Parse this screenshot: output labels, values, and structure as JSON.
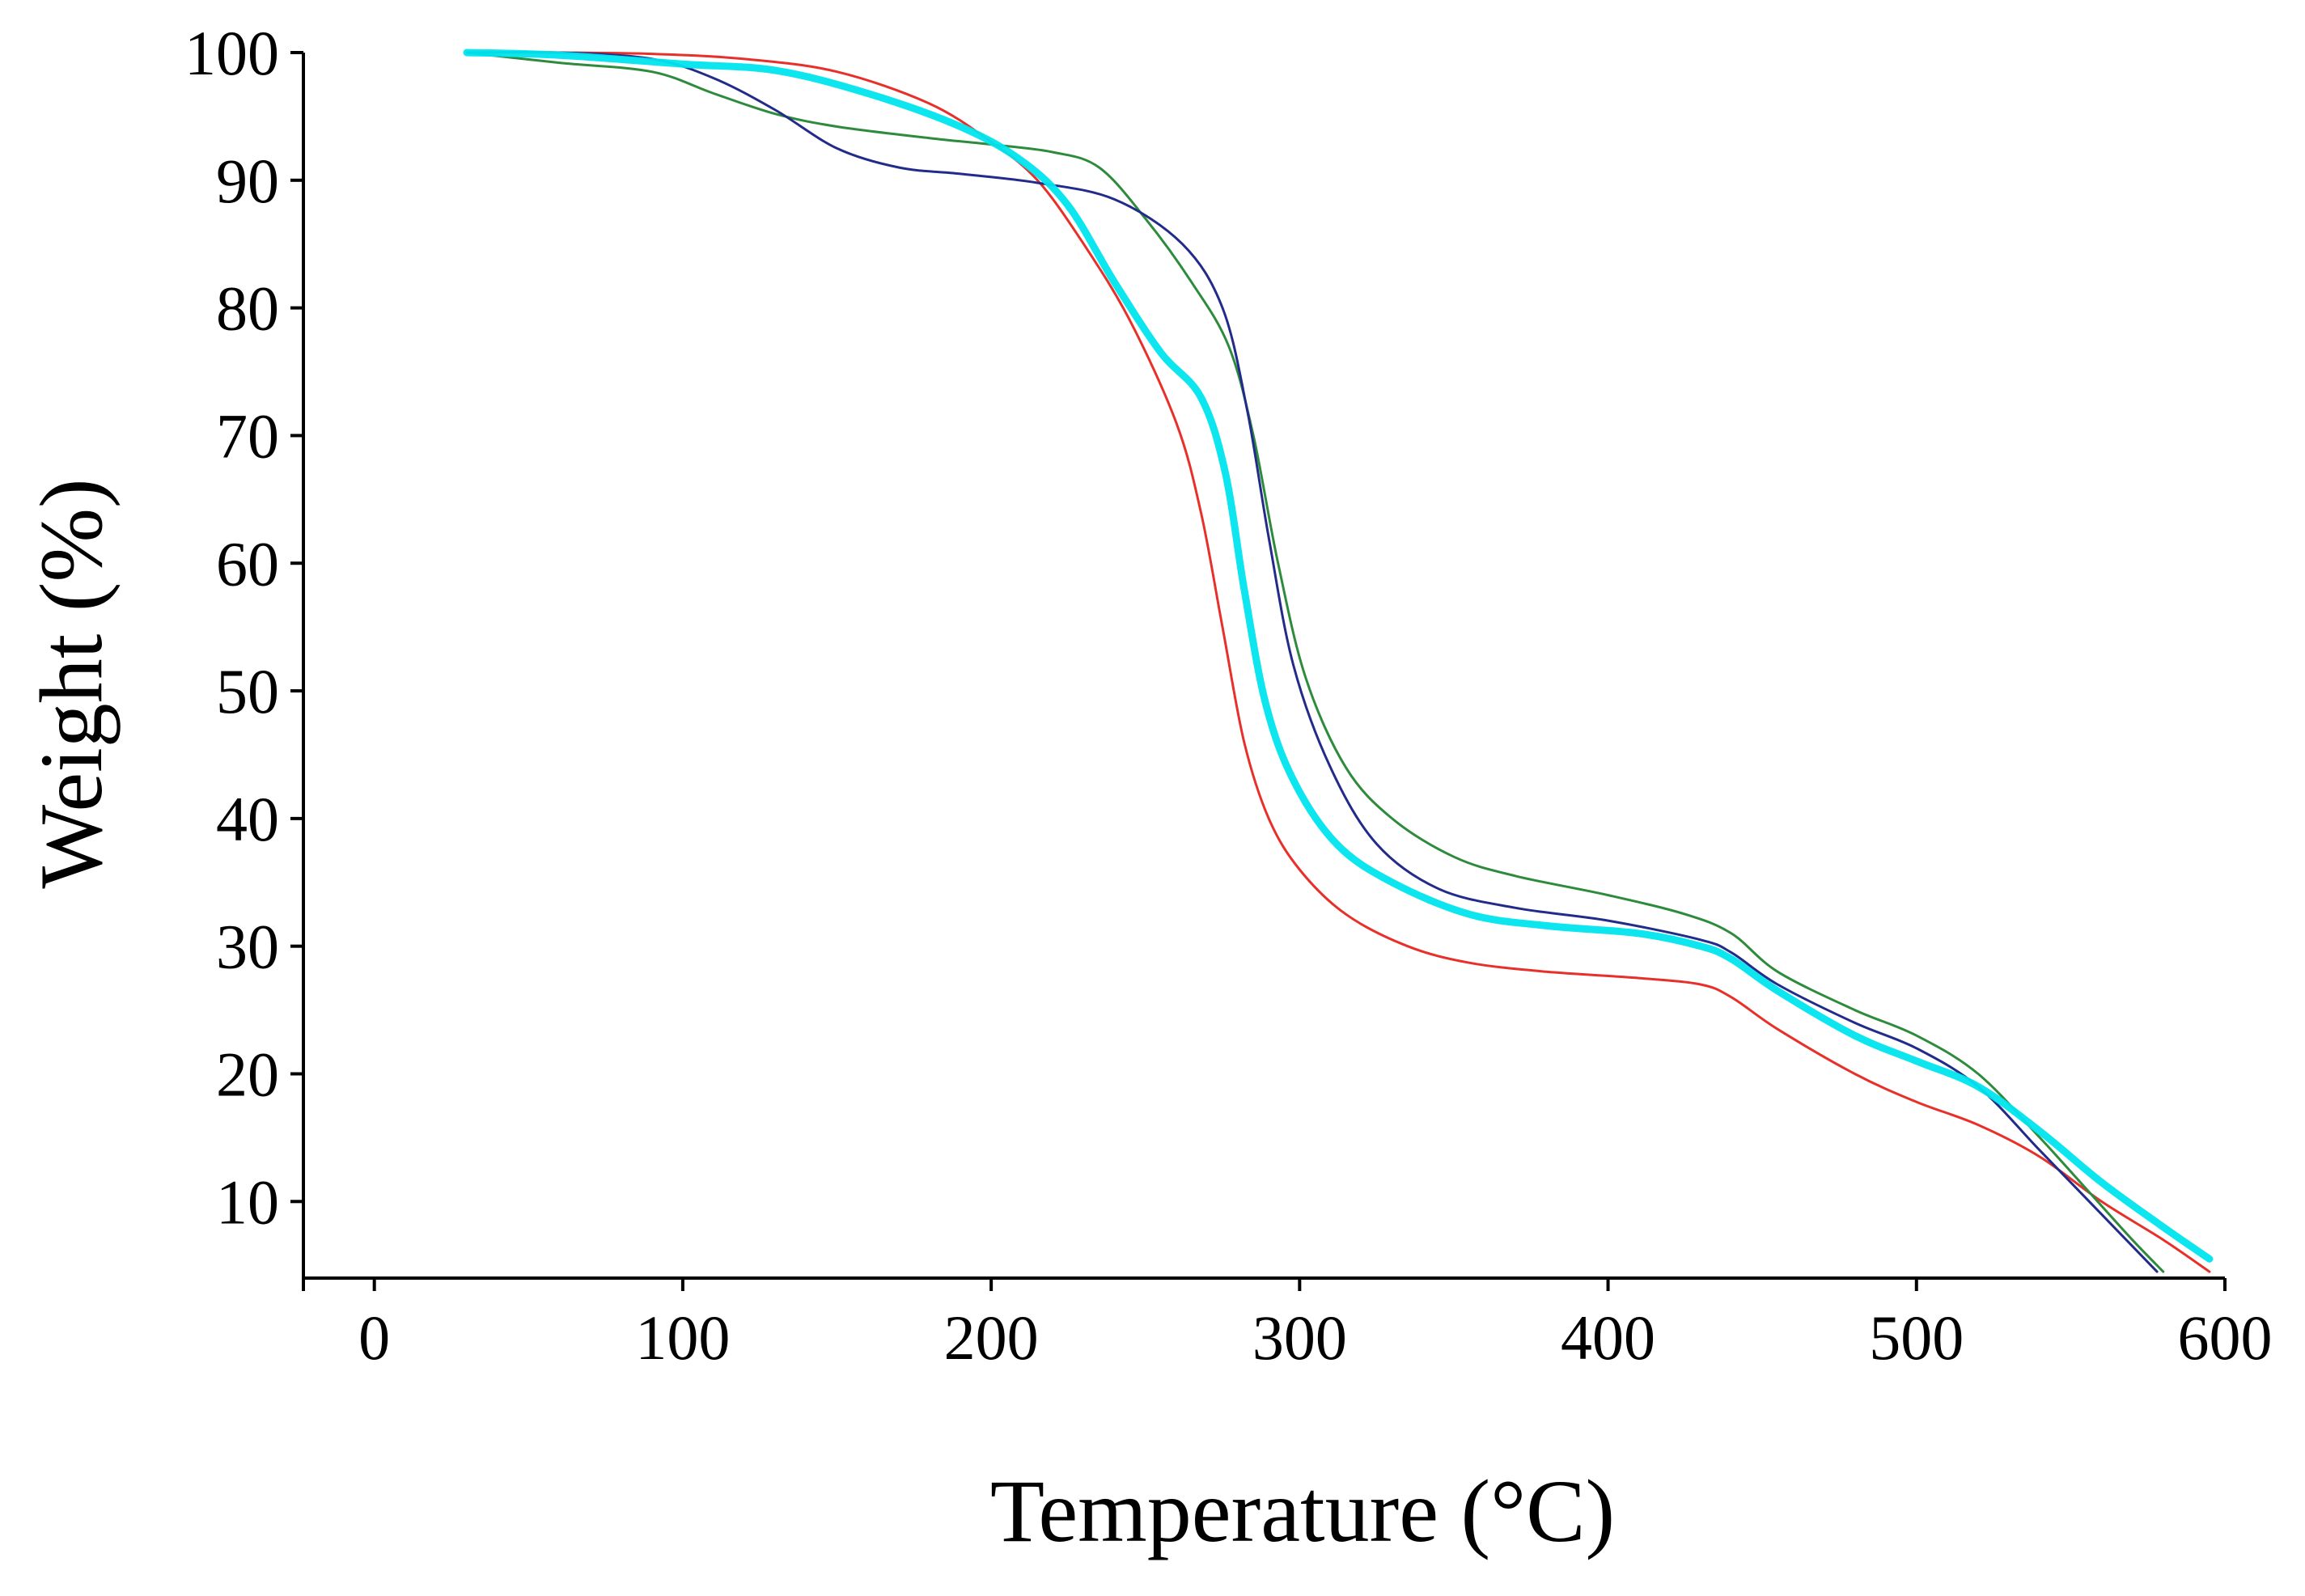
{
  "chart_data": {
    "type": "line",
    "title": "",
    "xlabel": "Temperature  (°C)",
    "ylabel": "Weight  (%)",
    "xlim": [
      -23,
      600
    ],
    "ylim": [
      4,
      100
    ],
    "x_ticks": [
      0,
      100,
      200,
      300,
      400,
      500,
      600
    ],
    "y_ticks": [
      10,
      20,
      30,
      40,
      50,
      60,
      70,
      80,
      90,
      100
    ],
    "grid": false,
    "legend": "none",
    "series": [
      {
        "name": "red",
        "color": "#e8302a",
        "points": [
          [
            30,
            100
          ],
          [
            60,
            100
          ],
          [
            90,
            99.9
          ],
          [
            120,
            99.5
          ],
          [
            150,
            98.5
          ],
          [
            180,
            96
          ],
          [
            200,
            93
          ],
          [
            215,
            90
          ],
          [
            230,
            85
          ],
          [
            245,
            79
          ],
          [
            260,
            71
          ],
          [
            268,
            64
          ],
          [
            275,
            55
          ],
          [
            282,
            46
          ],
          [
            290,
            40
          ],
          [
            300,
            36
          ],
          [
            315,
            32.5
          ],
          [
            335,
            30
          ],
          [
            355,
            28.7
          ],
          [
            380,
            28
          ],
          [
            410,
            27.5
          ],
          [
            430,
            27
          ],
          [
            440,
            26
          ],
          [
            455,
            23.5
          ],
          [
            480,
            20
          ],
          [
            500,
            17.8
          ],
          [
            520,
            16
          ],
          [
            540,
            13.5
          ],
          [
            560,
            10
          ],
          [
            580,
            7
          ],
          [
            595,
            4.5
          ]
        ]
      },
      {
        "name": "navy",
        "color": "#222b8a",
        "points": [
          [
            30,
            100
          ],
          [
            60,
            100
          ],
          [
            90,
            99.5
          ],
          [
            110,
            98
          ],
          [
            130,
            95.5
          ],
          [
            150,
            92.5
          ],
          [
            170,
            91
          ],
          [
            190,
            90.5
          ],
          [
            215,
            89.8
          ],
          [
            240,
            88.5
          ],
          [
            262,
            85
          ],
          [
            275,
            80
          ],
          [
            283,
            72
          ],
          [
            290,
            62
          ],
          [
            298,
            52
          ],
          [
            310,
            44
          ],
          [
            325,
            38
          ],
          [
            345,
            34.5
          ],
          [
            370,
            33
          ],
          [
            400,
            32
          ],
          [
            430,
            30.5
          ],
          [
            440,
            29.5
          ],
          [
            455,
            27
          ],
          [
            480,
            24
          ],
          [
            500,
            22
          ],
          [
            520,
            19
          ],
          [
            540,
            14
          ],
          [
            560,
            9
          ],
          [
            578,
            4.5
          ]
        ]
      },
      {
        "name": "green",
        "color": "#2e8b3c",
        "points": [
          [
            30,
            100
          ],
          [
            60,
            99.2
          ],
          [
            90,
            98.5
          ],
          [
            110,
            96.8
          ],
          [
            130,
            95.2
          ],
          [
            150,
            94.2
          ],
          [
            180,
            93.3
          ],
          [
            200,
            92.8
          ],
          [
            220,
            92.2
          ],
          [
            235,
            91
          ],
          [
            250,
            87
          ],
          [
            265,
            82
          ],
          [
            277,
            77
          ],
          [
            285,
            70
          ],
          [
            293,
            60
          ],
          [
            302,
            51
          ],
          [
            315,
            44
          ],
          [
            330,
            40
          ],
          [
            350,
            37
          ],
          [
            370,
            35.5
          ],
          [
            400,
            34
          ],
          [
            425,
            32.5
          ],
          [
            440,
            31
          ],
          [
            455,
            28
          ],
          [
            480,
            25
          ],
          [
            500,
            23
          ],
          [
            520,
            20
          ],
          [
            540,
            15
          ],
          [
            555,
            11
          ],
          [
            570,
            7
          ],
          [
            580,
            4.5
          ]
        ]
      },
      {
        "name": "cyan",
        "color": "#00e5ee",
        "points": [
          [
            30,
            100
          ],
          [
            60,
            99.8
          ],
          [
            100,
            99.1
          ],
          [
            130,
            98.6
          ],
          [
            160,
            96.8
          ],
          [
            190,
            94.2
          ],
          [
            210,
            91.5
          ],
          [
            225,
            88
          ],
          [
            240,
            82
          ],
          [
            255,
            76.5
          ],
          [
            268,
            73
          ],
          [
            276,
            67
          ],
          [
            282,
            58
          ],
          [
            289,
            49
          ],
          [
            298,
            43
          ],
          [
            312,
            38
          ],
          [
            330,
            35
          ],
          [
            355,
            32.5
          ],
          [
            380,
            31.6
          ],
          [
            410,
            31
          ],
          [
            430,
            30
          ],
          [
            440,
            29
          ],
          [
            455,
            26.5
          ],
          [
            480,
            23
          ],
          [
            500,
            21
          ],
          [
            520,
            19
          ],
          [
            540,
            15.5
          ],
          [
            560,
            11.5
          ],
          [
            580,
            8
          ],
          [
            595,
            5.5
          ]
        ]
      }
    ]
  }
}
